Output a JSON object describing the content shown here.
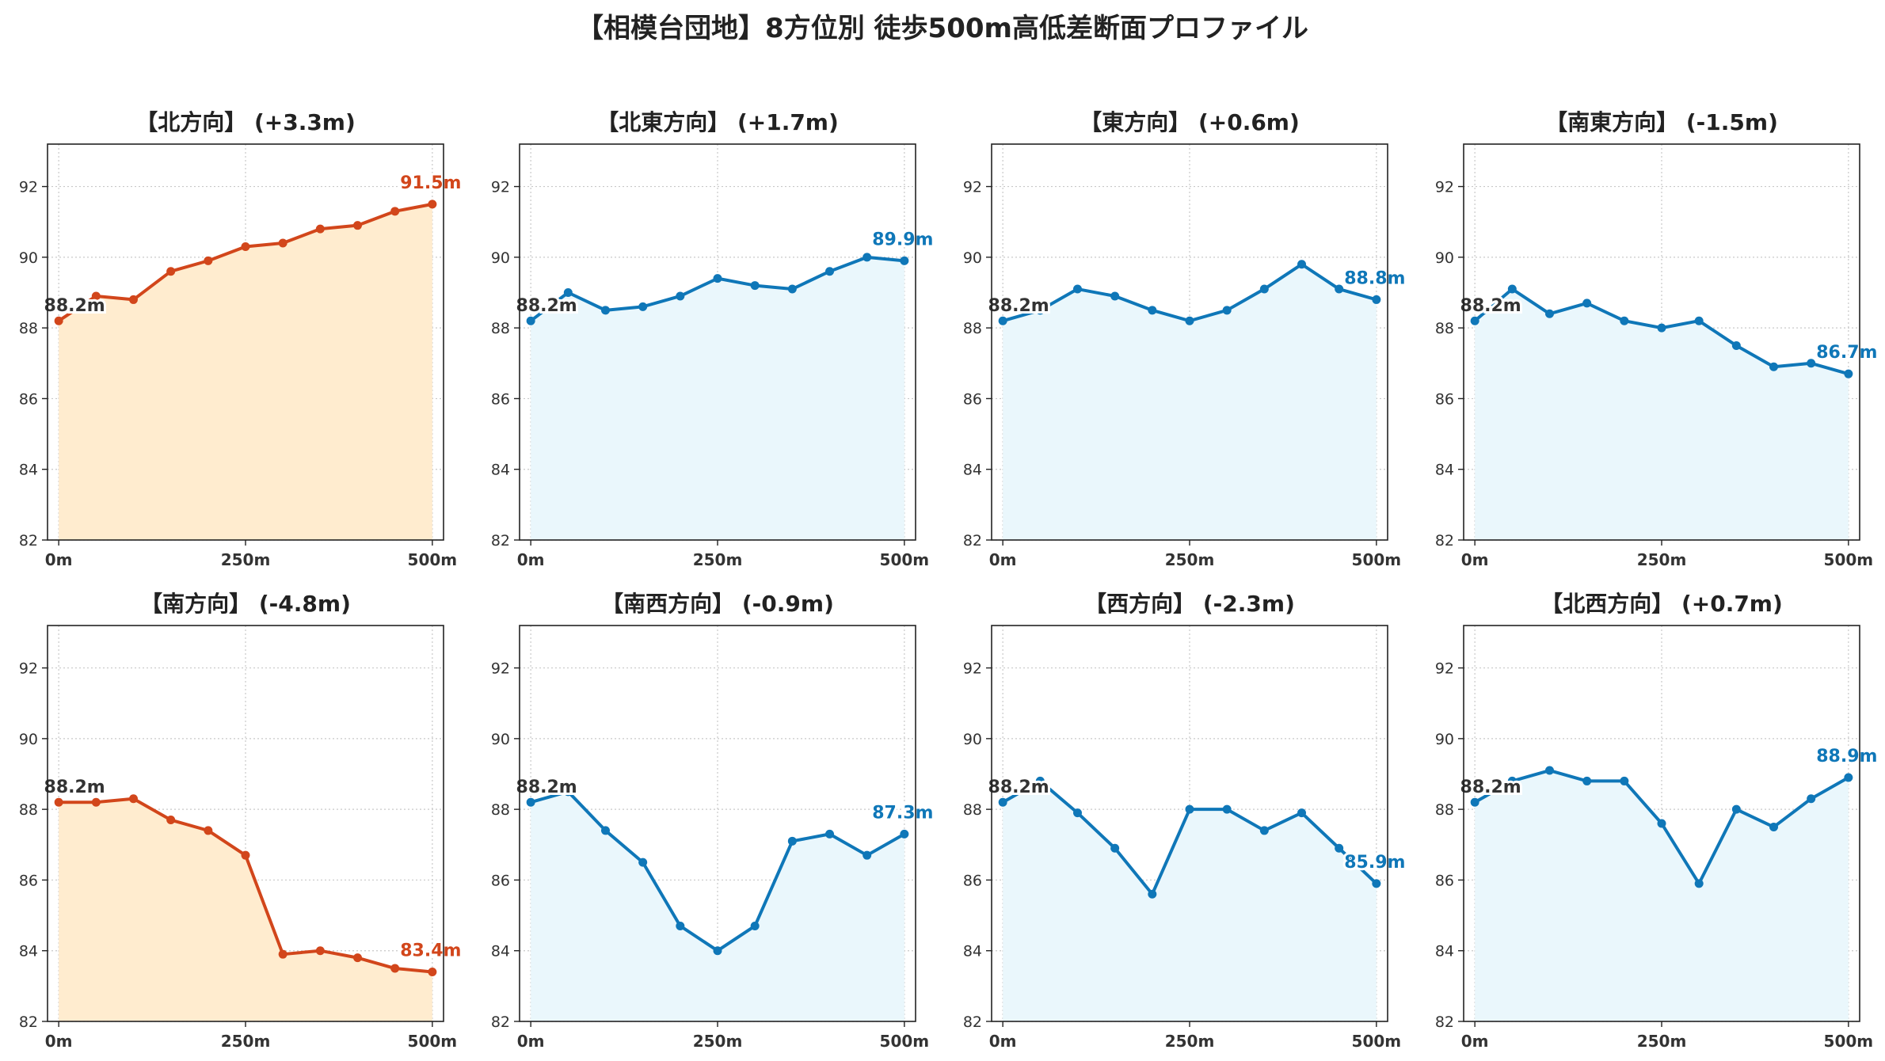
{
  "suptitle": "【相模台団地】8方位別 徒歩500m高低差断面プロファイル",
  "colors": {
    "up": "#d2461b",
    "down": "#0f77b8",
    "fill_up": "#ffeccf",
    "fill_down": "#eaf7fc",
    "grid": "#c8c8c8",
    "start_text": "#333333"
  },
  "chart_data": [
    {
      "type": "area",
      "title": "【北方向】 (+3.3m)",
      "style": "up",
      "x": [
        0,
        50,
        100,
        150,
        200,
        250,
        300,
        350,
        400,
        450,
        500
      ],
      "y": [
        88.2,
        88.9,
        88.8,
        89.6,
        89.9,
        90.3,
        90.4,
        90.8,
        90.9,
        91.3,
        91.5
      ],
      "start_label": "88.2m",
      "end_label": "91.5m",
      "xticks": [
        0,
        250,
        500
      ],
      "xtick_labels": [
        "0m",
        "250m",
        "500m"
      ],
      "yticks": [
        82,
        84,
        86,
        88,
        90,
        92
      ],
      "ylim": [
        82,
        93.2
      ],
      "xlim": [
        -15,
        515
      ],
      "grid": true
    },
    {
      "type": "area",
      "title": "【北東方向】 (+1.7m)",
      "style": "down",
      "x": [
        0,
        50,
        100,
        150,
        200,
        250,
        300,
        350,
        400,
        450,
        500
      ],
      "y": [
        88.2,
        89.0,
        88.5,
        88.6,
        88.9,
        89.4,
        89.2,
        89.1,
        89.6,
        90.0,
        89.9
      ],
      "start_label": "88.2m",
      "end_label": "89.9m",
      "xticks": [
        0,
        250,
        500
      ],
      "xtick_labels": [
        "0m",
        "250m",
        "500m"
      ],
      "yticks": [
        82,
        84,
        86,
        88,
        90,
        92
      ],
      "ylim": [
        82,
        93.2
      ],
      "xlim": [
        -15,
        515
      ],
      "grid": true
    },
    {
      "type": "area",
      "title": "【東方向】 (+0.6m)",
      "style": "down",
      "x": [
        0,
        50,
        100,
        150,
        200,
        250,
        300,
        350,
        400,
        450,
        500
      ],
      "y": [
        88.2,
        88.5,
        89.1,
        88.9,
        88.5,
        88.2,
        88.5,
        89.1,
        89.8,
        89.1,
        88.8
      ],
      "start_label": "88.2m",
      "end_label": "88.8m",
      "xticks": [
        0,
        250,
        500
      ],
      "xtick_labels": [
        "0m",
        "250m",
        "500m"
      ],
      "yticks": [
        82,
        84,
        86,
        88,
        90,
        92
      ],
      "ylim": [
        82,
        93.2
      ],
      "xlim": [
        -15,
        515
      ],
      "grid": true
    },
    {
      "type": "area",
      "title": "【南東方向】 (-1.5m)",
      "style": "down",
      "x": [
        0,
        50,
        100,
        150,
        200,
        250,
        300,
        350,
        400,
        450,
        500
      ],
      "y": [
        88.2,
        89.1,
        88.4,
        88.7,
        88.2,
        88.0,
        88.2,
        87.5,
        86.9,
        87.0,
        86.7
      ],
      "start_label": "88.2m",
      "end_label": "86.7m",
      "xticks": [
        0,
        250,
        500
      ],
      "xtick_labels": [
        "0m",
        "250m",
        "500m"
      ],
      "yticks": [
        82,
        84,
        86,
        88,
        90,
        92
      ],
      "ylim": [
        82,
        93.2
      ],
      "xlim": [
        -15,
        515
      ],
      "grid": true
    },
    {
      "type": "area",
      "title": "【南方向】 (-4.8m)",
      "style": "up",
      "x": [
        0,
        50,
        100,
        150,
        200,
        250,
        300,
        350,
        400,
        450,
        500
      ],
      "y": [
        88.2,
        88.2,
        88.3,
        87.7,
        87.4,
        86.7,
        83.9,
        84.0,
        83.8,
        83.5,
        83.4
      ],
      "start_label": "88.2m",
      "end_label": "83.4m",
      "xticks": [
        0,
        250,
        500
      ],
      "xtick_labels": [
        "0m",
        "250m",
        "500m"
      ],
      "yticks": [
        82,
        84,
        86,
        88,
        90,
        92
      ],
      "ylim": [
        82,
        93.2
      ],
      "xlim": [
        -15,
        515
      ],
      "grid": true
    },
    {
      "type": "area",
      "title": "【南西方向】 (-0.9m)",
      "style": "down",
      "x": [
        0,
        50,
        100,
        150,
        200,
        250,
        300,
        350,
        400,
        450,
        500
      ],
      "y": [
        88.2,
        88.5,
        87.4,
        86.5,
        84.7,
        84.0,
        84.7,
        87.1,
        87.3,
        86.7,
        87.3
      ],
      "start_label": "88.2m",
      "end_label": "87.3m",
      "xticks": [
        0,
        250,
        500
      ],
      "xtick_labels": [
        "0m",
        "250m",
        "500m"
      ],
      "yticks": [
        82,
        84,
        86,
        88,
        90,
        92
      ],
      "ylim": [
        82,
        93.2
      ],
      "xlim": [
        -15,
        515
      ],
      "grid": true
    },
    {
      "type": "area",
      "title": "【西方向】 (-2.3m)",
      "style": "down",
      "x": [
        0,
        50,
        100,
        150,
        200,
        250,
        300,
        350,
        400,
        450,
        500
      ],
      "y": [
        88.2,
        88.8,
        87.9,
        86.9,
        85.6,
        88.0,
        88.0,
        87.4,
        87.9,
        86.9,
        85.9
      ],
      "start_label": "88.2m",
      "end_label": "85.9m",
      "xticks": [
        0,
        250,
        500
      ],
      "xtick_labels": [
        "0m",
        "250m",
        "500m"
      ],
      "yticks": [
        82,
        84,
        86,
        88,
        90,
        92
      ],
      "ylim": [
        82,
        93.2
      ],
      "xlim": [
        -15,
        515
      ],
      "grid": true
    },
    {
      "type": "area",
      "title": "【北西方向】 (+0.7m)",
      "style": "down",
      "x": [
        0,
        50,
        100,
        150,
        200,
        250,
        300,
        350,
        400,
        450,
        500
      ],
      "y": [
        88.2,
        88.8,
        89.1,
        88.8,
        88.8,
        87.6,
        85.9,
        88.0,
        87.5,
        88.3,
        88.9
      ],
      "start_label": "88.2m",
      "end_label": "88.9m",
      "xticks": [
        0,
        250,
        500
      ],
      "xtick_labels": [
        "0m",
        "250m",
        "500m"
      ],
      "yticks": [
        82,
        84,
        86,
        88,
        90,
        92
      ],
      "ylim": [
        82,
        93.2
      ],
      "xlim": [
        -15,
        515
      ],
      "grid": true
    }
  ]
}
